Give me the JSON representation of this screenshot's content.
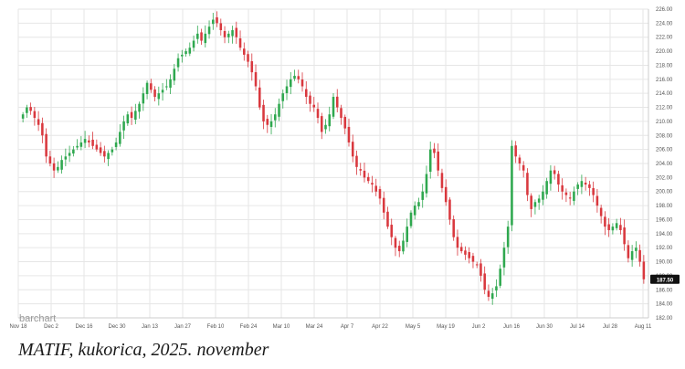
{
  "caption": "MATIF, kukorica, 2025. november",
  "brand": "barchart",
  "chart_data": {
    "type": "candlestick",
    "ylim": [
      182,
      226
    ],
    "grid": true,
    "y_ticks": [
      182,
      184,
      186,
      188,
      190,
      192,
      194,
      196,
      198,
      200,
      202,
      204,
      206,
      208,
      210,
      212,
      214,
      216,
      218,
      220,
      222,
      224,
      226
    ],
    "x_tick_labels": [
      "Nov 18",
      "Dec 2",
      "Dec 16",
      "Dec 30",
      "Jan 13",
      "Jan 27",
      "Feb 10",
      "Feb 24",
      "Mar 10",
      "Mar 24",
      "Apr 7",
      "Apr 22",
      "May 5",
      "May 19",
      "Jun 2",
      "Jun 16",
      "Jun 30",
      "Jul 14",
      "Jul 28",
      "Aug 11"
    ],
    "last_price": 187.5,
    "last_price_label": "187.50",
    "colors": {
      "up": "#2fa84f",
      "down": "#d9383e",
      "grid": "#e6e6e6",
      "axis": "#cccccc"
    },
    "closes": [
      211.0,
      212.0,
      211.5,
      210.5,
      209.5,
      208.0,
      205.0,
      204.0,
      203.0,
      203.5,
      204.5,
      205.0,
      205.5,
      206.0,
      206.5,
      207.0,
      207.5,
      207.0,
      206.5,
      206.0,
      205.5,
      205.0,
      205.5,
      206.0,
      207.0,
      208.5,
      210.0,
      211.0,
      210.5,
      211.5,
      212.5,
      214.0,
      215.5,
      214.5,
      213.5,
      214.0,
      214.5,
      215.0,
      216.0,
      217.5,
      219.0,
      219.5,
      220.0,
      220.5,
      221.5,
      222.5,
      221.5,
      222.5,
      223.5,
      224.5,
      224.0,
      223.0,
      222.0,
      222.5,
      223.0,
      222.0,
      220.5,
      219.5,
      218.5,
      217.0,
      215.0,
      212.0,
      210.0,
      209.5,
      210.0,
      211.0,
      212.5,
      214.0,
      215.0,
      216.0,
      216.5,
      216.0,
      215.0,
      213.5,
      212.5,
      212.0,
      210.5,
      208.5,
      209.5,
      211.0,
      213.5,
      212.0,
      210.5,
      209.0,
      207.0,
      205.0,
      203.5,
      203.0,
      202.0,
      201.5,
      201.0,
      200.0,
      199.0,
      197.0,
      195.0,
      193.5,
      192.0,
      191.5,
      193.0,
      195.0,
      197.0,
      198.0,
      198.5,
      200.0,
      202.5,
      206.0,
      205.5,
      203.0,
      200.5,
      198.5,
      196.0,
      193.5,
      192.0,
      191.5,
      191.0,
      190.5,
      190.0,
      189.5,
      188.0,
      186.0,
      185.0,
      185.5,
      186.5,
      189.0,
      192.0,
      195.0,
      206.5,
      205.0,
      204.0,
      203.0,
      199.5,
      197.5,
      198.5,
      199.0,
      200.0,
      201.5,
      203.0,
      202.5,
      201.0,
      200.0,
      199.5,
      199.0,
      200.0,
      201.0,
      201.5,
      201.0,
      200.5,
      199.5,
      198.0,
      196.5,
      195.0,
      194.5,
      195.0,
      195.5,
      194.5,
      192.5,
      190.5,
      191.5,
      192.0,
      190.0,
      187.5
    ]
  }
}
